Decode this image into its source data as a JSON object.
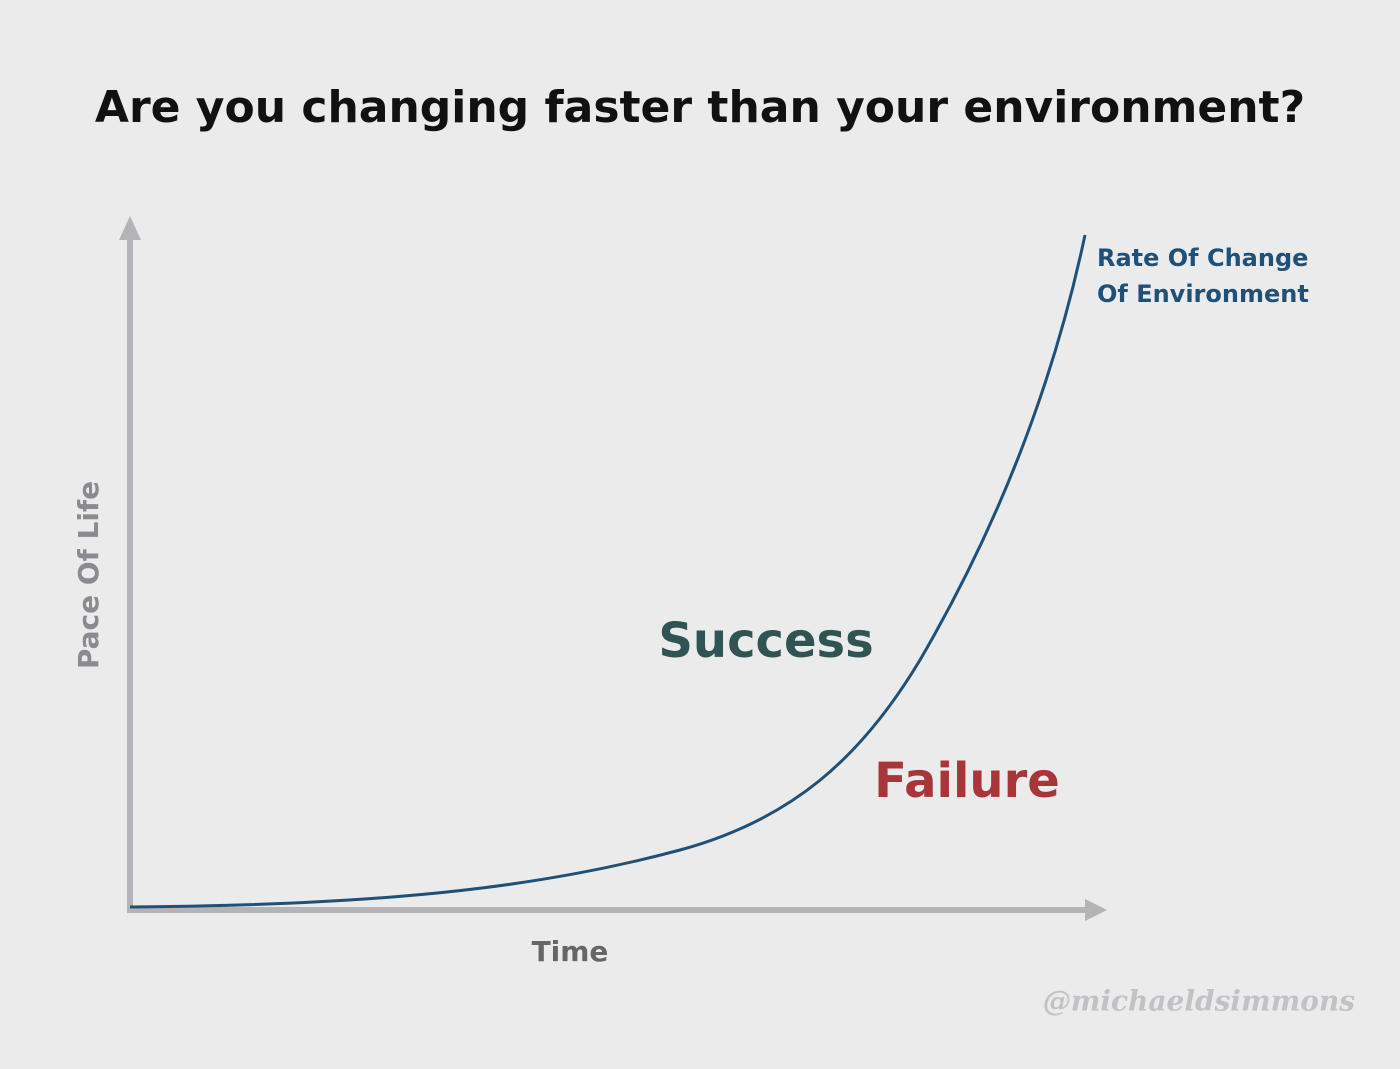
{
  "title": "Are you changing faster than your environment?",
  "y_axis_label": "Pace Of Life",
  "x_axis_label": "Time",
  "curve_label": [
    "Rate Of Change",
    "Of Environment"
  ],
  "regions": {
    "above": "Success",
    "below": "Failure"
  },
  "watermark": "@michaeldsimmons"
}
